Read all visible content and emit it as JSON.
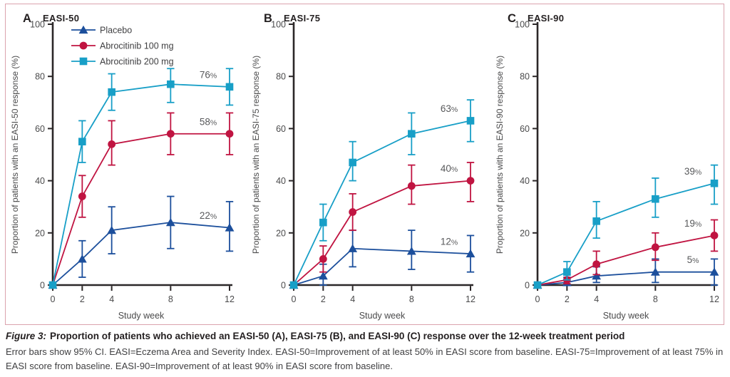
{
  "figure": {
    "caption_label": "Figure 3:",
    "caption_title": "Proportion of patients who achieved an EASI-50 (A), EASI-75 (B), and EASI-90 (C) response over the 12-week treatment period",
    "caption_body": "Error bars show 95% CI. EASI=Eczema Area and Severity Index. EASI-50=Improvement of at least 50% in EASI score from baseline. EASI-75=Improvement of at least 75% in EASI score from baseline. EASI-90=Improvement of at least 90% in EASI score from baseline."
  },
  "colors": {
    "frame_border": "#dba3ae",
    "axis": "#2b2728",
    "tick_text": "#4a4a4b",
    "axis_label_text": "#4a4a4b",
    "title_text": "#231f20",
    "end_label_text": "#58595b",
    "placebo": "#1c4f9c",
    "abrocitinib_100": "#c01441",
    "abrocitinib_200": "#189fc7"
  },
  "chart_data": [
    {
      "type": "line",
      "panel": "A",
      "title": "EASI-50",
      "ylabel": "Proportion of patients with an EASI-50 response (%)",
      "xlabel": "Study week",
      "x": [
        0,
        2,
        4,
        8,
        12
      ],
      "xticks": [
        0,
        2,
        4,
        8,
        12
      ],
      "yticks": [
        0,
        20,
        40,
        60,
        80,
        100
      ],
      "ylim": [
        0,
        100
      ],
      "xlim": [
        0,
        12
      ],
      "legend": true,
      "error_bars": "95% CI",
      "series": [
        {
          "name": "Placebo",
          "marker": "triangle",
          "color": "#1c4f9c",
          "values": [
            0,
            10,
            21,
            24,
            22
          ],
          "ci_low": [
            0,
            3,
            12,
            14,
            13
          ],
          "ci_high": [
            0,
            17,
            30,
            34,
            32
          ],
          "end_label": "22%"
        },
        {
          "name": "Abrocitinib 100 mg",
          "marker": "circle",
          "color": "#c01441",
          "values": [
            0,
            34,
            54,
            58,
            58
          ],
          "ci_low": [
            0,
            26,
            46,
            50,
            50
          ],
          "ci_high": [
            0,
            42,
            63,
            66,
            66
          ],
          "end_label": "58%"
        },
        {
          "name": "Abrocitinib 200 mg",
          "marker": "square",
          "color": "#189fc7",
          "values": [
            0,
            55,
            74,
            77,
            76
          ],
          "ci_low": [
            0,
            47,
            67,
            70,
            69
          ],
          "ci_high": [
            0,
            63,
            81,
            83,
            83
          ],
          "end_label": "76%"
        }
      ]
    },
    {
      "type": "line",
      "panel": "B",
      "title": "EASI-75",
      "ylabel": "Proportion of patients with an EASI-75 response (%)",
      "xlabel": "Study week",
      "x": [
        0,
        2,
        4,
        8,
        12
      ],
      "xticks": [
        0,
        2,
        4,
        8,
        12
      ],
      "yticks": [
        0,
        20,
        40,
        60,
        80,
        100
      ],
      "ylim": [
        0,
        100
      ],
      "xlim": [
        0,
        12
      ],
      "legend": false,
      "error_bars": "95% CI",
      "series": [
        {
          "name": "Placebo",
          "marker": "triangle",
          "color": "#1c4f9c",
          "values": [
            0,
            3.5,
            14,
            13,
            12
          ],
          "ci_low": [
            0,
            0,
            7,
            6,
            5
          ],
          "ci_high": [
            0,
            8,
            21,
            21,
            19
          ],
          "end_label": "12%"
        },
        {
          "name": "Abrocitinib 100 mg",
          "marker": "circle",
          "color": "#c01441",
          "values": [
            0,
            10,
            28,
            38,
            40
          ],
          "ci_low": [
            0,
            5,
            21,
            31,
            32
          ],
          "ci_high": [
            0,
            15,
            35,
            46,
            47
          ],
          "end_label": "40%"
        },
        {
          "name": "Abrocitinib 200 mg",
          "marker": "square",
          "color": "#189fc7",
          "values": [
            0,
            24,
            47,
            58,
            63
          ],
          "ci_low": [
            0,
            17,
            40,
            50,
            55
          ],
          "ci_high": [
            0,
            31,
            55,
            66,
            71
          ],
          "end_label": "63%"
        }
      ]
    },
    {
      "type": "line",
      "panel": "C",
      "title": "EASI-90",
      "ylabel": "Proportion of patients with an EASI-90 response (%)",
      "xlabel": "Study week",
      "x": [
        0,
        2,
        4,
        8,
        12
      ],
      "xticks": [
        0,
        2,
        4,
        8,
        12
      ],
      "yticks": [
        0,
        20,
        40,
        60,
        80,
        100
      ],
      "ylim": [
        0,
        100
      ],
      "xlim": [
        0,
        12
      ],
      "legend": false,
      "error_bars": "95% CI",
      "series": [
        {
          "name": "Placebo",
          "marker": "triangle",
          "color": "#1c4f9c",
          "values": [
            0,
            1,
            3.5,
            5,
            5
          ],
          "ci_low": [
            0,
            0,
            1,
            1,
            0
          ],
          "ci_high": [
            0,
            3,
            7,
            10,
            10
          ],
          "end_label": "5%"
        },
        {
          "name": "Abrocitinib 100 mg",
          "marker": "circle",
          "color": "#c01441",
          "values": [
            0,
            2,
            8,
            14.5,
            19
          ],
          "ci_low": [
            0,
            0.5,
            4,
            9.5,
            13
          ],
          "ci_high": [
            0,
            4,
            13,
            20,
            25
          ],
          "end_label": "19%"
        },
        {
          "name": "Abrocitinib 200 mg",
          "marker": "square",
          "color": "#189fc7",
          "values": [
            0,
            5,
            24.5,
            33,
            39
          ],
          "ci_low": [
            0,
            2,
            18,
            26,
            31
          ],
          "ci_high": [
            0,
            9,
            32,
            41,
            46
          ],
          "end_label": "39%"
        }
      ]
    }
  ]
}
